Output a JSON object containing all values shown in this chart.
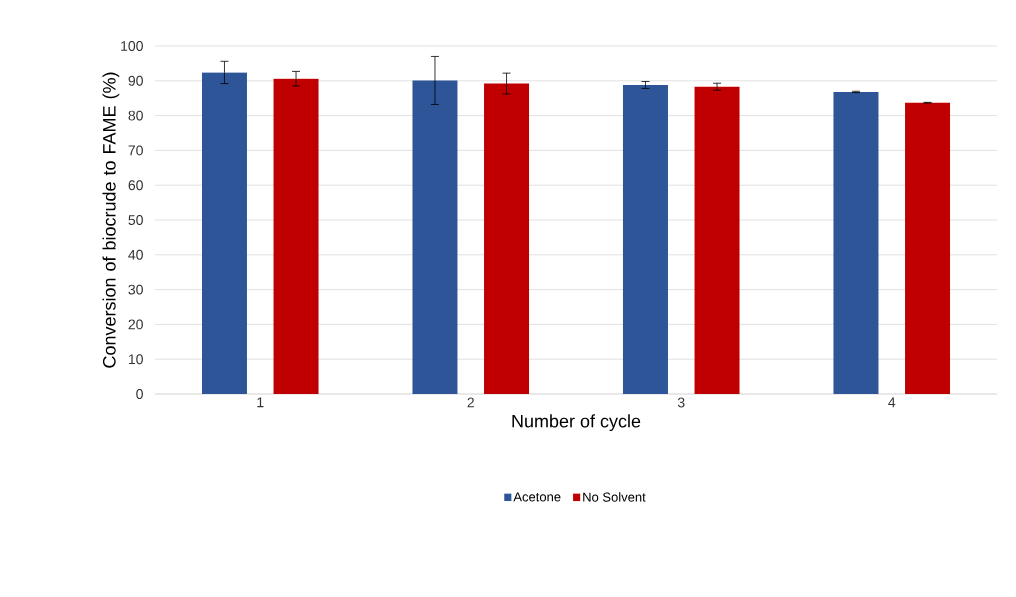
{
  "chart_data": {
    "type": "bar",
    "xlabel": "Number of cycle",
    "ylabel": "Conversion of biocrude to FAME (%)",
    "categories": [
      "1",
      "2",
      "3",
      "4"
    ],
    "series": [
      {
        "name": "Acetone",
        "color": "#2e5597",
        "values": [
          92.4,
          90.1,
          88.8,
          86.8
        ],
        "errors": [
          3.2,
          6.9,
          1.0,
          0.2
        ]
      },
      {
        "name": "No Solvent",
        "color": "#c00000",
        "values": [
          90.6,
          89.2,
          88.3,
          83.7
        ],
        "errors": [
          2.1,
          3.0,
          1.0,
          0.1
        ]
      }
    ],
    "ylim": [
      0,
      100
    ],
    "yticks": [
      0,
      10,
      20,
      30,
      40,
      50,
      60,
      70,
      80,
      90,
      100
    ],
    "grid": "y",
    "legend": "bottom"
  }
}
